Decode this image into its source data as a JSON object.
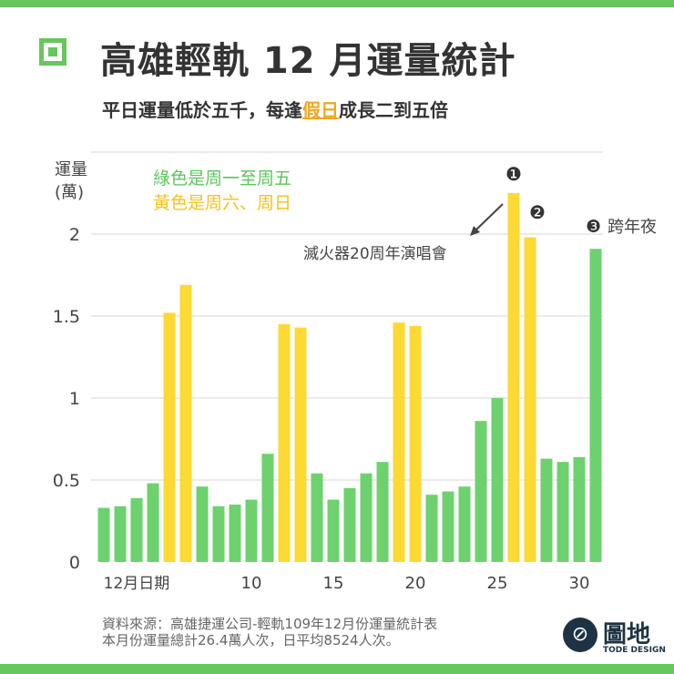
{
  "title": "高雄輕軌 12 月運量統計",
  "subtitle_pre": "平日運量低於五千，每逢",
  "subtitle_hl": "假日",
  "subtitle_post": "成長二到五倍",
  "colors": {
    "weekday": "#6dd16e",
    "weekend": "#fcd933",
    "accent": "#66c75e",
    "highlight": "#f3a81c"
  },
  "chart_data": {
    "type": "bar",
    "ylabel_line1": "運量",
    "ylabel_line2": "(萬)",
    "xlabel": "12月日期",
    "x": [
      1,
      2,
      3,
      4,
      5,
      6,
      7,
      8,
      9,
      10,
      11,
      12,
      13,
      14,
      15,
      16,
      17,
      18,
      19,
      20,
      21,
      22,
      23,
      24,
      25,
      26,
      27,
      28,
      29,
      30,
      31
    ],
    "values": [
      0.33,
      0.34,
      0.39,
      0.48,
      1.52,
      1.69,
      0.46,
      0.34,
      0.35,
      0.38,
      0.66,
      1.45,
      1.43,
      0.54,
      0.38,
      0.45,
      0.54,
      0.61,
      1.46,
      1.44,
      0.41,
      0.43,
      0.46,
      0.86,
      1.0,
      2.25,
      1.98,
      0.63,
      0.61,
      0.64,
      1.91
    ],
    "weekend": [
      5,
      6,
      12,
      13,
      19,
      20,
      26,
      27
    ],
    "ylim": [
      0,
      2.5
    ],
    "yticks": [
      0,
      0.5,
      1,
      1.5,
      2
    ],
    "ytick_labels": [
      "0",
      "0.5",
      "1",
      "1.5",
      "2"
    ],
    "xticks": [
      10,
      15,
      20,
      25,
      30
    ],
    "xtick_labels": [
      "10",
      "15",
      "20",
      "25",
      "30"
    ],
    "grid": true,
    "legend": [
      {
        "label": "綠色是周一至周五",
        "color": "#6dd16e"
      },
      {
        "label": "黃色是周六、周日",
        "color": "#fcd933"
      }
    ],
    "legend_placement": "top-left",
    "annotations": [
      {
        "marker": "❶",
        "day": 26,
        "text": "滅火器20周年演唱會"
      },
      {
        "marker": "❷",
        "day": 27
      },
      {
        "marker": "❸",
        "day": 31,
        "text": "跨年夜"
      }
    ]
  },
  "source_line1": "資料來源：高雄捷運公司-輕軌109年12月份運量統計表",
  "source_line2": "本月份運量總計26.4萬人次，日平均8524人次。",
  "logo": {
    "name": "圖地",
    "sub": "TODE DESIGN"
  }
}
